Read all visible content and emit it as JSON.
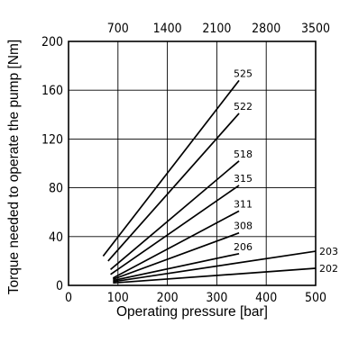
{
  "chart_data": {
    "type": "line",
    "xlabel": "Operating pressure [bar]",
    "ylabel": "Torque needed to operate the pump [Nm]",
    "xlim": [
      0,
      500
    ],
    "ylim": [
      0,
      200
    ],
    "x_ticks": [
      "0",
      "100",
      "200",
      "300",
      "400",
      "500"
    ],
    "y_ticks": [
      "0",
      "40",
      "80",
      "120",
      "160",
      "200"
    ],
    "secondary_x_ticks": [
      "700",
      "1400",
      "2100",
      "2800",
      "3500"
    ],
    "grid": true,
    "series": [
      {
        "name": "525",
        "points": [
          [
            70,
            24
          ],
          [
            345,
            168
          ]
        ]
      },
      {
        "name": "522",
        "points": [
          [
            80,
            20
          ],
          [
            345,
            141
          ]
        ]
      },
      {
        "name": "518",
        "points": [
          [
            85,
            13
          ],
          [
            345,
            102
          ]
        ]
      },
      {
        "name": "315",
        "points": [
          [
            85,
            9
          ],
          [
            345,
            82
          ]
        ]
      },
      {
        "name": "311",
        "points": [
          [
            90,
            6
          ],
          [
            345,
            61
          ]
        ]
      },
      {
        "name": "308",
        "points": [
          [
            90,
            5
          ],
          [
            345,
            43
          ]
        ]
      },
      {
        "name": "206",
        "points": [
          [
            90,
            4
          ],
          [
            345,
            26
          ]
        ]
      },
      {
        "name": "203",
        "points": [
          [
            90,
            3
          ],
          [
            500,
            28
          ]
        ]
      },
      {
        "name": "202",
        "points": [
          [
            90,
            2
          ],
          [
            500,
            14
          ]
        ]
      }
    ]
  }
}
